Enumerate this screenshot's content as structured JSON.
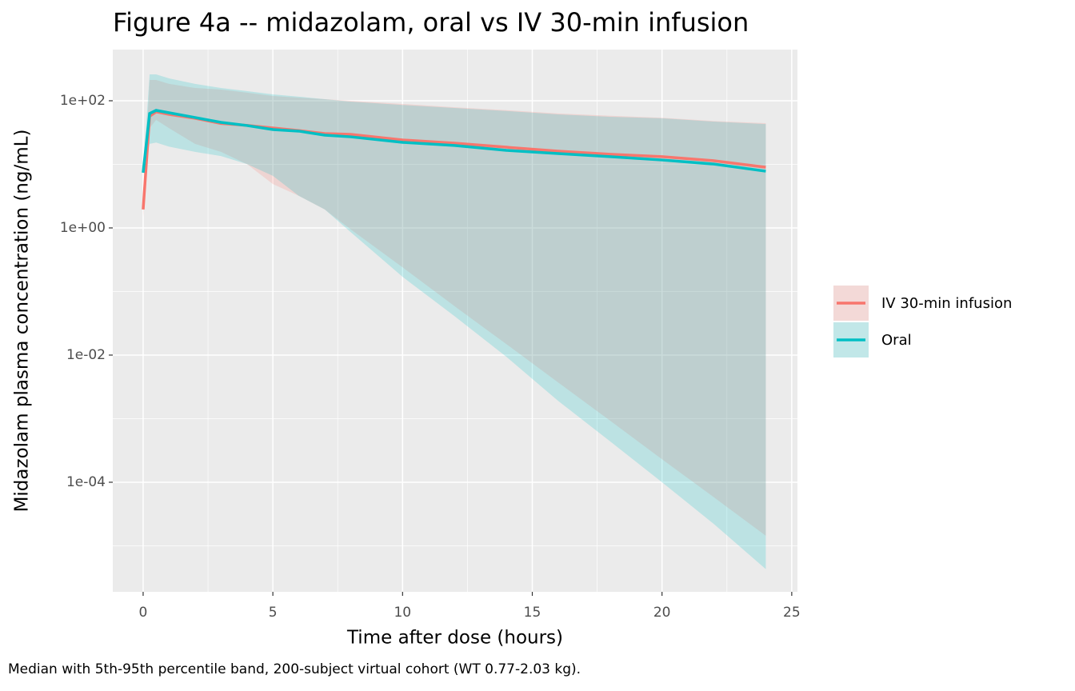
{
  "chart_data": {
    "type": "line",
    "title": "Figure 4a -- midazolam, oral vs IV 30-min infusion",
    "xlabel": "Time after dose (hours)",
    "ylabel": "Midazolam plasma concentration (ng/mL)",
    "caption": "Median with 5th-95th percentile band, 200-subject virtual cohort (WT 0.77-2.03 kg).",
    "log_y": true,
    "grid": true,
    "legend_position": "right",
    "x": [
      0,
      0.25,
      0.5,
      1,
      2,
      3,
      4,
      5,
      6,
      7,
      8,
      10,
      12,
      14,
      16,
      18,
      20,
      22,
      24
    ],
    "xlim": [
      -1.17,
      25.22
    ],
    "xticks": [
      0,
      5,
      10,
      15,
      20,
      25
    ],
    "xminor": [
      2.5,
      7.5,
      12.5,
      17.5,
      22.5
    ],
    "ylim": [
      1.89e-06,
      638
    ],
    "yticks": [
      {
        "value": 0.0001,
        "label": "1e-04"
      },
      {
        "value": 0.01,
        "label": "1e-02"
      },
      {
        "value": 1,
        "label": "1e+00"
      },
      {
        "value": 100,
        "label": "1e+02"
      }
    ],
    "yminor": [
      1e-05,
      0.001,
      0.1,
      10
    ],
    "series": [
      {
        "name": "IV 30-min infusion",
        "color": "#F8766D",
        "values": [
          1.95,
          57,
          67,
          61,
          53,
          44,
          41,
          37.4,
          34,
          30.5,
          29.6,
          24.2,
          21.5,
          18.6,
          16.1,
          14.4,
          13.2,
          11.4,
          9.0
        ],
        "lower": [
          1.45,
          37,
          50,
          37,
          21,
          15.7,
          10.1,
          4.9,
          3.2,
          1.95,
          0.95,
          0.24,
          0.059,
          0.0149,
          0.0037,
          0.00093,
          0.00023,
          5.8e-05,
          1.44e-05
        ],
        "upper": [
          2.75,
          212,
          212,
          184,
          159,
          150,
          134,
          119,
          112,
          106,
          100,
          89,
          79,
          71,
          63,
          58,
          54,
          48,
          44.5
        ]
      },
      {
        "name": "Oral",
        "color": "#00BFC4",
        "values": [
          7.4,
          63,
          70.6,
          64.7,
          54.5,
          45.7,
          40.8,
          35.2,
          33.3,
          28.8,
          27.1,
          22.2,
          19.8,
          16.6,
          14.8,
          13.2,
          11.7,
          10.1,
          7.8
        ],
        "lower": [
          7,
          21,
          22,
          19,
          15.7,
          13.5,
          10.1,
          6.6,
          3.2,
          1.95,
          0.86,
          0.17,
          0.041,
          0.0094,
          0.0019,
          0.00044,
          0.0001,
          2.2e-05,
          4.3e-06
        ],
        "upper": [
          8,
          260,
          260,
          225,
          184,
          159,
          142,
          126,
          116,
          106,
          97,
          86,
          77,
          69,
          61,
          56,
          53,
          47,
          43
        ]
      }
    ]
  }
}
